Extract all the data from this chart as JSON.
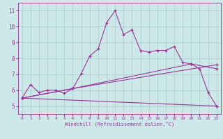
{
  "xlabel": "Windchill (Refroidissement éolien,°C)",
  "bg_color": "#cce8e8",
  "line_color": "#993399",
  "grid_color": "#aacccc",
  "xlim": [
    -0.5,
    23.5
  ],
  "ylim": [
    4.5,
    11.5
  ],
  "xticks": [
    0,
    1,
    2,
    3,
    4,
    5,
    6,
    7,
    8,
    9,
    10,
    11,
    12,
    13,
    14,
    15,
    16,
    17,
    18,
    19,
    20,
    21,
    22,
    23
  ],
  "yticks": [
    5,
    6,
    7,
    8,
    9,
    10,
    11
  ],
  "curve1_x": [
    0,
    1,
    2,
    3,
    4,
    5,
    6,
    7,
    8,
    9,
    10,
    11,
    12,
    13,
    14,
    15,
    16,
    17,
    18,
    19,
    20,
    21,
    22,
    23
  ],
  "curve1_y": [
    5.5,
    6.35,
    5.85,
    6.0,
    6.0,
    5.8,
    6.1,
    7.05,
    8.15,
    8.6,
    10.25,
    11.0,
    9.5,
    9.8,
    8.5,
    8.4,
    8.5,
    8.5,
    8.75,
    7.75,
    7.65,
    7.35,
    5.85,
    5.0
  ],
  "curve2_x": [
    0,
    23
  ],
  "curve2_y": [
    5.5,
    5.0
  ],
  "curve3_x": [
    0,
    6,
    23
  ],
  "curve3_y": [
    5.5,
    6.1,
    7.6
  ],
  "curve4_x": [
    0,
    6,
    20,
    23
  ],
  "curve4_y": [
    5.5,
    6.1,
    7.65,
    7.35
  ]
}
